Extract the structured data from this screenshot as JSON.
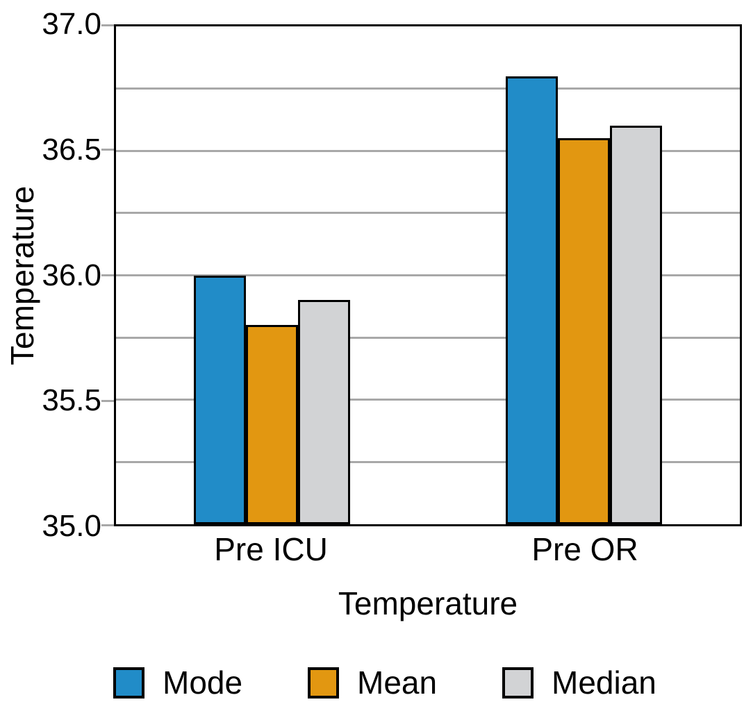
{
  "chart_data": {
    "type": "bar",
    "title": "",
    "categories": [
      "Pre ICU",
      "Pre OR"
    ],
    "series": [
      {
        "name": "Mode",
        "color": "#218CC8",
        "values": [
          36.0,
          36.8
        ]
      },
      {
        "name": "Mean",
        "color": "#E29711",
        "values": [
          35.8,
          36.55
        ]
      },
      {
        "name": "Median",
        "color": "#D2D3D5",
        "values": [
          35.9,
          36.6
        ]
      }
    ],
    "xlabel": "Temperature",
    "ylabel": "Temperature",
    "ylim": [
      35.0,
      37.0
    ],
    "yticks": [
      "35.0",
      "35.5",
      "36.0",
      "36.5",
      "37.0"
    ],
    "grid_step": 0.25,
    "grid": true,
    "legend_position": "bottom",
    "colors": {
      "bar_border": "#000000",
      "axis_frame": "#000000",
      "gridline": "#A8A8A8",
      "tick_mark": "#A8A8A8",
      "text": "#000000",
      "background": "#FFFFFF"
    }
  }
}
